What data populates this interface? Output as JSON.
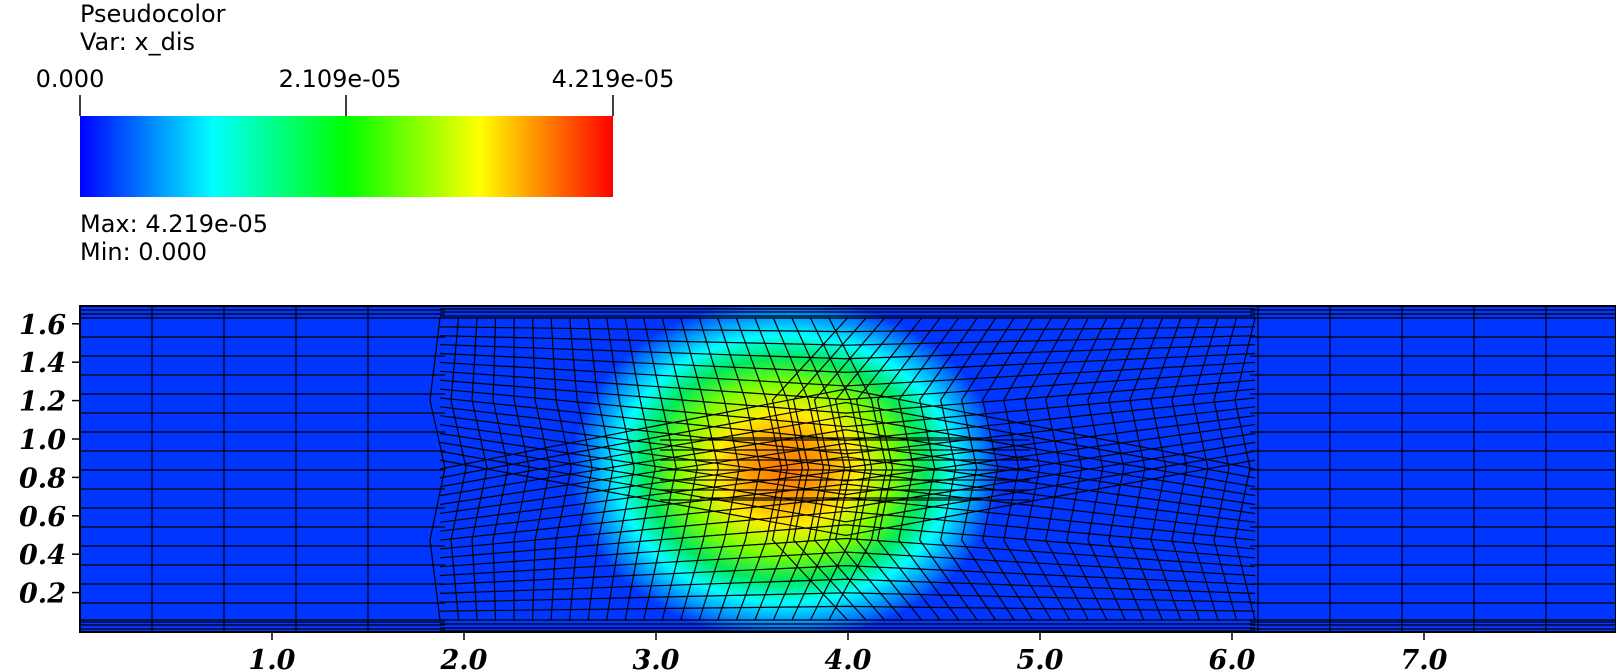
{
  "legend": {
    "title": "Pseudocolor",
    "var_line": "Var: x_dis",
    "tick_labels": [
      "0.000",
      "2.109e-05",
      "4.219e-05"
    ],
    "max_line": "Max:  4.219e-05",
    "min_line": "Min:  0.000",
    "colormap": [
      "#0000ff",
      "#00ffff",
      "#00ff00",
      "#ffff00",
      "#ff0000"
    ]
  },
  "chart_data": {
    "type": "heatmap",
    "variable": "x_dis",
    "value_range": [
      0.0,
      4.219e-05
    ],
    "x_ticks": [
      "1.0",
      "2.0",
      "3.0",
      "4.0",
      "5.0",
      "6.0",
      "7.0"
    ],
    "y_ticks": [
      "1.6",
      "1.4",
      "1.2",
      "1.0",
      "0.8",
      "0.6",
      "0.4",
      "0.2"
    ],
    "xlim": [
      0.0,
      8.0
    ],
    "ylim": [
      0.0,
      1.7
    ],
    "mesh": "on"
  }
}
